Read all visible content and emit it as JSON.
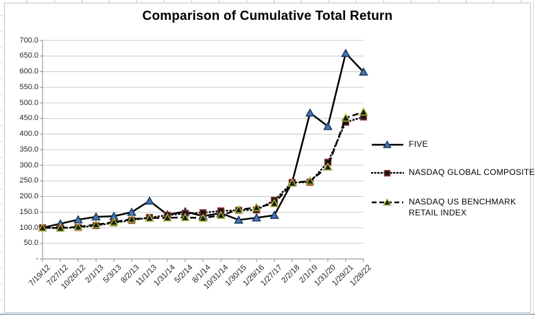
{
  "worksheet": {
    "frame_border_color": "#c3c3c3",
    "gridline_color": "#c9c9c9",
    "axis_color": "#8c8c8c",
    "pane_divider_color": "#a3b7d0"
  },
  "chart_data": {
    "type": "line",
    "title": "Comparison of Cumulative Total Return",
    "xlabel": "",
    "ylabel": "",
    "ylim": [
      0,
      700
    ],
    "y_step": 50,
    "y_tick_labels": [
      "-",
      "50.0",
      "100.0",
      "150.0",
      "200.0",
      "250.0",
      "300.0",
      "350.0",
      "400.0",
      "450.0",
      "500.0",
      "550.0",
      "600.0",
      "650.0",
      "700.0"
    ],
    "grid": true,
    "legend_position": "right",
    "categories": [
      "7/19/12",
      "7/27/12",
      "10/26/12",
      "2/1/13",
      "5/3/13",
      "8/2/13",
      "11/1/13",
      "1/31/14",
      "5/2/14",
      "8/1/14",
      "10/31/14",
      "1/30/15",
      "1/29/16",
      "1/27/17",
      "2/2/18",
      "2/1/19",
      "1/31/20",
      "1/29/21",
      "1/28/22"
    ],
    "series": [
      {
        "name": "FIVE",
        "line_style": "solid",
        "line_color": "#000000",
        "marker": "triangle",
        "marker_fill": "#4576b5",
        "marker_stroke": "#17375d",
        "values": [
          100,
          113,
          126,
          135,
          137,
          150,
          186,
          142,
          152,
          137,
          147,
          125,
          132,
          140,
          246,
          468,
          425,
          659,
          599
        ]
      },
      {
        "name": "NASDAQ GLOBAL COMPOSITE",
        "line_style": "dotted",
        "line_color": "#000000",
        "marker": "square",
        "marker_fill": "#161616",
        "marker_stroke": "#943634",
        "values": [
          100,
          99,
          101,
          107,
          116,
          124,
          133,
          140,
          146,
          148,
          154,
          156,
          157,
          188,
          245,
          246,
          310,
          438,
          455
        ]
      },
      {
        "name": "NASDAQ US BENCHMARK RETAIL INDEX",
        "line_style": "dashed",
        "line_color": "#000000",
        "marker": "triangle",
        "marker_fill": "#1c1c10",
        "marker_stroke": "#a5b83a",
        "values": [
          100,
          99,
          103,
          110,
          118,
          128,
          131,
          132,
          133,
          131,
          140,
          158,
          165,
          178,
          243,
          250,
          295,
          452,
          471
        ]
      }
    ]
  }
}
